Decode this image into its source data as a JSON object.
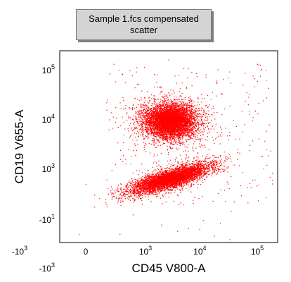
{
  "chart_data": {
    "type": "scatter",
    "title": [
      "Sample 1.fcs compensated",
      "scatter"
    ],
    "xlabel": "CD45 V800-A",
    "ylabel": "CD19 V655-A",
    "scale": "biexponential",
    "x_ticks": [
      {
        "value": -1000,
        "base": "-10",
        "exp": "3"
      },
      {
        "value": 0,
        "base": "0",
        "exp": ""
      },
      {
        "value": 1000,
        "base": "10",
        "exp": "3"
      },
      {
        "value": 10000,
        "base": "10",
        "exp": "4"
      },
      {
        "value": 100000,
        "base": "10",
        "exp": "5"
      }
    ],
    "y_ticks": [
      {
        "value": 100000,
        "base": "10",
        "exp": "5"
      },
      {
        "value": 10000,
        "base": "10",
        "exp": "4"
      },
      {
        "value": 1000,
        "base": "10",
        "exp": "3"
      },
      {
        "value": -10,
        "base": "-10",
        "exp": "1"
      },
      {
        "value": -1000,
        "base": "-10",
        "exp": "3"
      }
    ],
    "point_color": "#ff0000",
    "populations": [
      {
        "x_center": 3000,
        "y_center": 9000,
        "approx_events": 6000
      },
      {
        "x_center": 3000,
        "y_center": 600,
        "approx_events": 5000
      }
    ]
  }
}
